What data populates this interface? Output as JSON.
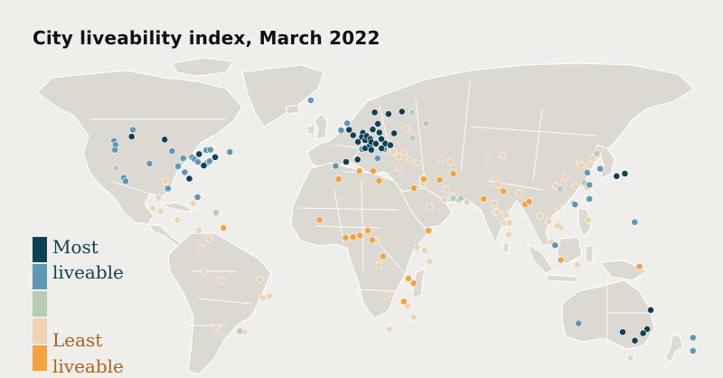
{
  "title": "City liveability index, March 2022",
  "colors": {
    "most": "#0e4156",
    "liveable": "#5f97b6",
    "mid": "#b8cbb7",
    "low": "#efd2b0",
    "least": "#f2a23e"
  },
  "legend": {
    "most_label": "Most",
    "most_label2": "liveable",
    "least_label": "Least",
    "least_label2": "liveable",
    "swatches": [
      "most",
      "liveable",
      "mid",
      "low",
      "least"
    ]
  },
  "cities": [
    {
      "lon": -123.1,
      "lat": 49.3,
      "cat": "liveable"
    },
    {
      "lon": -114.1,
      "lat": 51.0,
      "cat": "most"
    },
    {
      "lon": -113.5,
      "lat": 53.5,
      "cat": "liveable"
    },
    {
      "lon": -97.1,
      "lat": 49.9,
      "cat": "most"
    },
    {
      "lon": -79.4,
      "lat": 43.7,
      "cat": "most"
    },
    {
      "lon": -75.7,
      "lat": 45.4,
      "cat": "liveable"
    },
    {
      "lon": -73.6,
      "lat": 45.5,
      "cat": "liveable"
    },
    {
      "lon": -63.6,
      "lat": 44.6,
      "cat": "liveable"
    },
    {
      "lon": -122.4,
      "lat": 47.6,
      "cat": "liveable"
    },
    {
      "lon": -122.7,
      "lat": 45.5,
      "cat": "liveable"
    },
    {
      "lon": -122.4,
      "lat": 37.8,
      "cat": "mid"
    },
    {
      "lon": -118.2,
      "lat": 34.1,
      "cat": "liveable"
    },
    {
      "lon": -117.2,
      "lat": 32.7,
      "cat": "liveable"
    },
    {
      "lon": -104.9,
      "lat": 39.7,
      "cat": "liveable"
    },
    {
      "lon": -87.6,
      "lat": 41.9,
      "cat": "liveable"
    },
    {
      "lon": -83.0,
      "lat": 42.3,
      "cat": "liveable"
    },
    {
      "lon": -81.7,
      "lat": 41.5,
      "cat": "liveable"
    },
    {
      "lon": -80.0,
      "lat": 40.4,
      "cat": "liveable"
    },
    {
      "lon": -77.0,
      "lat": 38.9,
      "cat": "most"
    },
    {
      "lon": -75.2,
      "lat": 40.0,
      "cat": "liveable"
    },
    {
      "lon": -74.0,
      "lat": 40.7,
      "cat": "liveable"
    },
    {
      "lon": -71.1,
      "lat": 42.4,
      "cat": "most"
    },
    {
      "lon": -93.3,
      "lat": 45.0,
      "cat": "liveable"
    },
    {
      "lon": -90.2,
      "lat": 38.6,
      "cat": "liveable"
    },
    {
      "lon": -84.4,
      "lat": 33.7,
      "cat": "most"
    },
    {
      "lon": -95.4,
      "lat": 29.8,
      "cat": "liveable"
    },
    {
      "lon": -96.8,
      "lat": 32.8,
      "cat": "low"
    },
    {
      "lon": -86.8,
      "lat": 36.2,
      "cat": "liveable"
    },
    {
      "lon": -80.2,
      "lat": 25.8,
      "cat": "liveable"
    },
    {
      "lon": -99.1,
      "lat": 19.4,
      "cat": "low"
    },
    {
      "lon": -103.3,
      "lat": 20.7,
      "cat": "low"
    },
    {
      "lon": -100.3,
      "lat": 25.7,
      "cat": "low"
    },
    {
      "lon": -90.5,
      "lat": 14.6,
      "cat": "low"
    },
    {
      "lon": -79.5,
      "lat": 9.0,
      "cat": "low"
    },
    {
      "lon": -82.4,
      "lat": 23.1,
      "cat": "low"
    },
    {
      "lon": -70.7,
      "lat": 18.5,
      "cat": "mid"
    },
    {
      "lon": -66.9,
      "lat": 10.5,
      "cat": "least"
    },
    {
      "lon": -74.1,
      "lat": 4.7,
      "cat": "low"
    },
    {
      "lon": -78.5,
      "lat": -0.2,
      "cat": "low"
    },
    {
      "lon": -77.0,
      "lat": -12.0,
      "cat": "low"
    },
    {
      "lon": -68.1,
      "lat": -16.5,
      "cat": "low"
    },
    {
      "lon": -47.9,
      "lat": -15.8,
      "cat": "low"
    },
    {
      "lon": -43.2,
      "lat": -22.9,
      "cat": "low"
    },
    {
      "lon": -46.6,
      "lat": -23.5,
      "cat": "low"
    },
    {
      "lon": -70.7,
      "lat": -33.4,
      "cat": "low"
    },
    {
      "lon": -58.4,
      "lat": -34.6,
      "cat": "mid"
    },
    {
      "lon": -56.2,
      "lat": -34.9,
      "cat": "low"
    },
    {
      "lon": -21.9,
      "lat": 64.1,
      "cat": "liveable"
    },
    {
      "lon": -6.3,
      "lat": 53.3,
      "cat": "liveable"
    },
    {
      "lon": -0.1,
      "lat": 51.5,
      "cat": "most"
    },
    {
      "lon": -2.2,
      "lat": 53.5,
      "cat": "most"
    },
    {
      "lon": -3.2,
      "lat": 55.9,
      "cat": "liveable"
    },
    {
      "lon": 2.35,
      "lat": 48.9,
      "cat": "most"
    },
    {
      "lon": 4.4,
      "lat": 45.8,
      "cat": "liveable"
    },
    {
      "lon": 4.9,
      "lat": 52.4,
      "cat": "most"
    },
    {
      "lon": 4.4,
      "lat": 50.8,
      "cat": "most"
    },
    {
      "lon": 6.1,
      "lat": 49.6,
      "cat": "most"
    },
    {
      "lon": 6.1,
      "lat": 46.2,
      "cat": "most"
    },
    {
      "lon": 8.5,
      "lat": 47.4,
      "cat": "most"
    },
    {
      "lon": 6.8,
      "lat": 51.2,
      "cat": "most"
    },
    {
      "lon": 8.7,
      "lat": 50.1,
      "cat": "most"
    },
    {
      "lon": 9.2,
      "lat": 48.8,
      "cat": "most"
    },
    {
      "lon": 11.6,
      "lat": 48.1,
      "cat": "most"
    },
    {
      "lon": 10.0,
      "lat": 53.6,
      "cat": "most"
    },
    {
      "lon": 13.4,
      "lat": 52.5,
      "cat": "most"
    },
    {
      "lon": 12.6,
      "lat": 55.7,
      "cat": "most"
    },
    {
      "lon": 11.0,
      "lat": 59.9,
      "cat": "most"
    },
    {
      "lon": 18.1,
      "lat": 59.3,
      "cat": "most"
    },
    {
      "lon": 25.0,
      "lat": 60.2,
      "cat": "most"
    },
    {
      "lon": 16.4,
      "lat": 48.2,
      "cat": "most"
    },
    {
      "lon": 14.4,
      "lat": 50.1,
      "cat": "most"
    },
    {
      "lon": 21.0,
      "lat": 52.2,
      "cat": "most"
    },
    {
      "lon": 19.0,
      "lat": 47.5,
      "cat": "most"
    },
    {
      "lon": 14.5,
      "lat": 46.1,
      "cat": "most"
    },
    {
      "lon": 16.0,
      "lat": 45.8,
      "cat": "liveable"
    },
    {
      "lon": 9.2,
      "lat": 45.5,
      "cat": "most"
    },
    {
      "lon": 12.5,
      "lat": 41.9,
      "cat": "liveable"
    },
    {
      "lon": 2.2,
      "lat": 41.4,
      "cat": "most"
    },
    {
      "lon": -3.7,
      "lat": 40.4,
      "cat": "most"
    },
    {
      "lon": -9.1,
      "lat": 38.7,
      "cat": "liveable"
    },
    {
      "lon": 20.5,
      "lat": 44.8,
      "cat": "low"
    },
    {
      "lon": 26.1,
      "lat": 44.4,
      "cat": "low"
    },
    {
      "lon": 23.3,
      "lat": 42.7,
      "cat": "low"
    },
    {
      "lon": 23.7,
      "lat": 38.0,
      "cat": "low"
    },
    {
      "lon": 28.9,
      "lat": 41.0,
      "cat": "low"
    },
    {
      "lon": 32.9,
      "lat": 39.9,
      "cat": "low"
    },
    {
      "lon": 30.5,
      "lat": 50.5,
      "cat": "mid"
    },
    {
      "lon": 37.6,
      "lat": 55.8,
      "cat": "mid"
    },
    {
      "lon": 30.3,
      "lat": 59.9,
      "cat": "mid"
    },
    {
      "lon": 27.6,
      "lat": 53.9,
      "cat": "low"
    },
    {
      "lon": 44.8,
      "lat": 41.7,
      "cat": "low"
    },
    {
      "lon": 49.9,
      "lat": 40.4,
      "cat": "low"
    },
    {
      "lon": 69.3,
      "lat": 41.3,
      "cat": "low"
    },
    {
      "lon": 76.9,
      "lat": 43.2,
      "cat": "low"
    },
    {
      "lon": -7.6,
      "lat": 33.6,
      "cat": "least"
    },
    {
      "lon": 3.1,
      "lat": 36.8,
      "cat": "least"
    },
    {
      "lon": 10.2,
      "lat": 36.8,
      "cat": "least"
    },
    {
      "lon": 13.2,
      "lat": 32.9,
      "cat": "least"
    },
    {
      "lon": 31.2,
      "lat": 30.0,
      "cat": "least"
    },
    {
      "lon": 35.2,
      "lat": 31.8,
      "cat": "low"
    },
    {
      "lon": 35.5,
      "lat": 33.9,
      "cat": "low"
    },
    {
      "lon": 36.3,
      "lat": 33.5,
      "cat": "least"
    },
    {
      "lon": 35.9,
      "lat": 31.9,
      "cat": "low"
    },
    {
      "lon": 44.4,
      "lat": 33.3,
      "cat": "least"
    },
    {
      "lon": 51.4,
      "lat": 35.7,
      "cat": "least"
    },
    {
      "lon": 46.7,
      "lat": 24.7,
      "cat": "low"
    },
    {
      "lon": 39.2,
      "lat": 21.5,
      "cat": "low"
    },
    {
      "lon": 48.0,
      "lat": 29.4,
      "cat": "low"
    },
    {
      "lon": 50.6,
      "lat": 26.2,
      "cat": "low"
    },
    {
      "lon": 51.5,
      "lat": 25.3,
      "cat": "mid"
    },
    {
      "lon": 54.4,
      "lat": 24.5,
      "cat": "mid"
    },
    {
      "lon": 55.3,
      "lat": 25.3,
      "cat": "mid"
    },
    {
      "lon": 58.4,
      "lat": 23.6,
      "cat": "low"
    },
    {
      "lon": 67.0,
      "lat": 24.9,
      "cat": "least"
    },
    {
      "lon": 74.3,
      "lat": 31.5,
      "cat": "low"
    },
    {
      "lon": 73.0,
      "lat": 33.7,
      "cat": "low"
    },
    {
      "lon": 77.2,
      "lat": 28.6,
      "cat": "least"
    },
    {
      "lon": 72.9,
      "lat": 19.1,
      "cat": "low"
    },
    {
      "lon": 73.9,
      "lat": 18.5,
      "cat": "low"
    },
    {
      "lon": 78.5,
      "lat": 17.4,
      "cat": "low"
    },
    {
      "lon": 77.6,
      "lat": 13.0,
      "cat": "low"
    },
    {
      "lon": 80.3,
      "lat": 13.1,
      "cat": "low"
    },
    {
      "lon": 72.6,
      "lat": 23.0,
      "cat": "low"
    },
    {
      "lon": 88.4,
      "lat": 22.6,
      "cat": "least"
    },
    {
      "lon": 90.4,
      "lat": 23.8,
      "cat": "least"
    },
    {
      "lon": 85.3,
      "lat": 27.7,
      "cat": "low"
    },
    {
      "lon": 79.9,
      "lat": 6.9,
      "cat": "low"
    },
    {
      "lon": 96.2,
      "lat": 16.8,
      "cat": "low"
    },
    {
      "lon": 100.5,
      "lat": 13.8,
      "cat": "low"
    },
    {
      "lon": 106.7,
      "lat": 10.8,
      "cat": "low"
    },
    {
      "lon": 105.8,
      "lat": 21.0,
      "cat": "low"
    },
    {
      "lon": 104.9,
      "lat": 11.6,
      "cat": "low"
    },
    {
      "lon": 101.7,
      "lat": 3.1,
      "cat": "low"
    },
    {
      "lon": 103.8,
      "lat": 1.35,
      "cat": "liveable"
    },
    {
      "lon": 106.8,
      "lat": -6.2,
      "cat": "least"
    },
    {
      "lon": 115.2,
      "lat": -8.7,
      "cat": "low"
    },
    {
      "lon": 121.0,
      "lat": 14.6,
      "cat": "low"
    },
    {
      "lon": 116.4,
      "lat": 39.9,
      "cat": "low"
    },
    {
      "lon": 117.2,
      "lat": 39.1,
      "cat": "low"
    },
    {
      "lon": 121.5,
      "lat": 31.2,
      "cat": "liveable"
    },
    {
      "lon": 113.3,
      "lat": 23.1,
      "cat": "mid"
    },
    {
      "lon": 114.1,
      "lat": 22.4,
      "cat": "liveable"
    },
    {
      "lon": 114.1,
      "lat": 22.5,
      "cat": "low"
    },
    {
      "lon": 104.1,
      "lat": 30.7,
      "cat": "low"
    },
    {
      "lon": 106.5,
      "lat": 29.6,
      "cat": "mid"
    },
    {
      "lon": 108.9,
      "lat": 34.3,
      "cat": "low"
    },
    {
      "lon": 120.2,
      "lat": 30.3,
      "cat": "low"
    },
    {
      "lon": 118.8,
      "lat": 32.1,
      "cat": "mid"
    },
    {
      "lon": 114.3,
      "lat": 30.6,
      "cat": "low"
    },
    {
      "lon": 123.4,
      "lat": 41.8,
      "cat": "low"
    },
    {
      "lon": 126.6,
      "lat": 45.8,
      "cat": "low"
    },
    {
      "lon": 125.3,
      "lat": 43.9,
      "cat": "mid"
    },
    {
      "lon": 121.6,
      "lat": 38.9,
      "cat": "low"
    },
    {
      "lon": 120.4,
      "lat": 36.1,
      "cat": "liveable"
    },
    {
      "lon": 127.0,
      "lat": 37.6,
      "cat": "liveable"
    },
    {
      "lon": 121.5,
      "lat": 25.0,
      "cat": "liveable"
    },
    {
      "lon": 139.7,
      "lat": 35.7,
      "cat": "most"
    },
    {
      "lon": 135.5,
      "lat": 34.7,
      "cat": "most"
    },
    {
      "lon": 144.8,
      "lat": 13.5,
      "cat": "liveable"
    },
    {
      "lon": -17.4,
      "lat": 14.7,
      "cat": "least"
    },
    {
      "lon": -4.0,
      "lat": 5.3,
      "cat": "least"
    },
    {
      "lon": 3.4,
      "lat": 6.5,
      "cat": "least"
    },
    {
      "lon": 7.5,
      "lat": 9.1,
      "cat": "least"
    },
    {
      "lon": -0.2,
      "lat": 5.6,
      "cat": "least"
    },
    {
      "lon": 9.7,
      "lat": 4.1,
      "cat": "least"
    },
    {
      "lon": 11.5,
      "lat": 3.9,
      "cat": "low"
    },
    {
      "lon": 38.7,
      "lat": 9.0,
      "cat": "least"
    },
    {
      "lon": 36.8,
      "lat": -1.3,
      "cat": "low"
    },
    {
      "lon": 39.3,
      "lat": -6.8,
      "cat": "low"
    },
    {
      "lon": 28.3,
      "lat": -15.4,
      "cat": "least"
    },
    {
      "lon": 31.0,
      "lat": -17.8,
      "cat": "least"
    },
    {
      "lon": 25.9,
      "lat": -24.7,
      "cat": "least"
    },
    {
      "lon": 28.0,
      "lat": -26.2,
      "cat": "low"
    },
    {
      "lon": 31.0,
      "lat": -29.9,
      "cat": "low"
    },
    {
      "lon": 18.4,
      "lat": -33.9,
      "cat": "low"
    },
    {
      "lon": 17.1,
      "lat": -22.6,
      "cat": "low"
    },
    {
      "lon": 13.2,
      "lat": -8.8,
      "cat": "low"
    },
    {
      "lon": 15.3,
      "lat": -4.3,
      "cat": "least"
    },
    {
      "lon": 32.6,
      "lat": 0.3,
      "cat": "low"
    },
    {
      "lon": 147.2,
      "lat": -9.4,
      "cat": "least"
    },
    {
      "lon": 115.9,
      "lat": -32.0,
      "cat": "liveable"
    },
    {
      "lon": 138.6,
      "lat": -34.9,
      "cat": "most"
    },
    {
      "lon": 144.9,
      "lat": -37.8,
      "cat": "most"
    },
    {
      "lon": 151.2,
      "lat": -33.9,
      "cat": "most"
    },
    {
      "lon": 153.0,
      "lat": -27.5,
      "cat": "most"
    },
    {
      "lon": 149.1,
      "lat": -35.3,
      "cat": "most"
    },
    {
      "lon": 174.8,
      "lat": -36.8,
      "cat": "liveable"
    },
    {
      "lon": 174.8,
      "lat": -41.3,
      "cat": "liveable"
    }
  ]
}
